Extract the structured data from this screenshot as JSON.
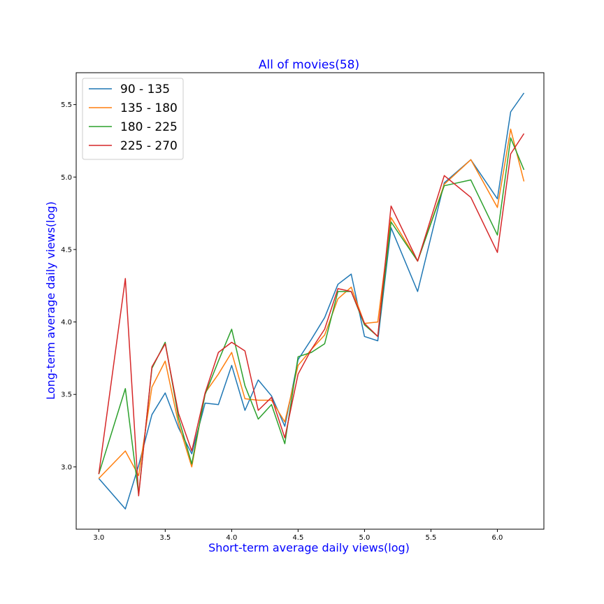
{
  "chart_data": {
    "type": "line",
    "title": "All of movies(58)",
    "xlabel": "Short-term average daily views(log)",
    "ylabel": "Long-term average daily views(log)",
    "xlim": [
      2.83,
      6.35
    ],
    "ylim": [
      2.57,
      5.72
    ],
    "xticks": [
      3.0,
      3.5,
      4.0,
      4.5,
      5.0,
      5.5,
      6.0
    ],
    "xtick_labels": [
      "3.0",
      "3.5",
      "4.0",
      "4.5",
      "5.0",
      "5.5",
      "6.0"
    ],
    "yticks": [
      3.0,
      3.5,
      4.0,
      4.5,
      5.0,
      5.5
    ],
    "ytick_labels": [
      "3.0",
      "3.5",
      "4.0",
      "4.5",
      "5.0",
      "5.5"
    ],
    "grid": false,
    "legend_position": "top-left",
    "series": [
      {
        "name": "90 - 135",
        "color": "#1f77b4",
        "x": [
          3.0,
          3.2,
          3.3,
          3.4,
          3.5,
          3.6,
          3.7,
          3.8,
          3.9,
          4.0,
          4.1,
          4.2,
          4.3,
          4.4,
          4.5,
          4.6,
          4.7,
          4.8,
          4.9,
          5.0,
          5.1,
          5.2,
          5.4,
          5.6,
          5.8,
          6.0,
          6.1,
          6.2
        ],
        "y": [
          2.92,
          2.71,
          3.01,
          3.36,
          3.51,
          3.27,
          3.09,
          3.44,
          3.43,
          3.7,
          3.39,
          3.6,
          3.49,
          3.28,
          3.74,
          3.88,
          4.03,
          4.26,
          4.33,
          3.9,
          3.87,
          4.65,
          4.21,
          4.96,
          5.12,
          4.85,
          5.45,
          5.58
        ]
      },
      {
        "name": "135 - 180",
        "color": "#ff7f0e",
        "x": [
          3.0,
          3.2,
          3.3,
          3.4,
          3.5,
          3.6,
          3.7,
          3.8,
          3.9,
          4.0,
          4.1,
          4.2,
          4.3,
          4.4,
          4.5,
          4.6,
          4.7,
          4.8,
          4.9,
          5.0,
          5.1,
          5.2,
          5.4,
          5.6,
          5.8,
          6.0,
          6.1,
          6.2
        ],
        "y": [
          2.92,
          3.11,
          2.94,
          3.55,
          3.73,
          3.3,
          3.0,
          3.51,
          3.64,
          3.79,
          3.47,
          3.46,
          3.46,
          3.31,
          3.7,
          3.81,
          3.91,
          4.16,
          4.24,
          3.99,
          4.0,
          4.72,
          4.42,
          4.95,
          5.12,
          4.79,
          5.33,
          4.97
        ]
      },
      {
        "name": "180 - 225",
        "color": "#2ca02c",
        "x": [
          3.0,
          3.2,
          3.3,
          3.4,
          3.5,
          3.6,
          3.7,
          3.8,
          3.9,
          4.0,
          4.1,
          4.2,
          4.3,
          4.4,
          4.5,
          4.6,
          4.7,
          4.8,
          4.9,
          5.0,
          5.1,
          5.2,
          5.4,
          5.6,
          5.8,
          6.0,
          6.1,
          6.2
        ],
        "y": [
          2.95,
          3.54,
          2.81,
          3.68,
          3.86,
          3.34,
          3.02,
          3.5,
          3.73,
          3.95,
          3.56,
          3.33,
          3.43,
          3.16,
          3.76,
          3.79,
          3.85,
          4.21,
          4.21,
          3.98,
          3.9,
          4.69,
          4.42,
          4.94,
          4.98,
          4.6,
          5.27,
          5.05
        ]
      },
      {
        "name": "225 - 270",
        "color": "#d62728",
        "x": [
          3.0,
          3.2,
          3.3,
          3.4,
          3.5,
          3.6,
          3.7,
          3.8,
          3.9,
          4.0,
          4.1,
          4.2,
          4.3,
          4.4,
          4.5,
          4.6,
          4.7,
          4.8,
          4.9,
          5.0,
          5.1,
          5.2,
          5.4,
          5.6,
          5.8,
          6.0,
          6.1,
          6.2
        ],
        "y": [
          2.95,
          4.3,
          2.8,
          3.69,
          3.85,
          3.37,
          3.11,
          3.51,
          3.79,
          3.86,
          3.8,
          3.39,
          3.48,
          3.2,
          3.64,
          3.81,
          3.95,
          4.23,
          4.21,
          3.99,
          3.9,
          4.8,
          4.42,
          5.01,
          4.86,
          4.48,
          5.16,
          5.3
        ]
      }
    ]
  }
}
